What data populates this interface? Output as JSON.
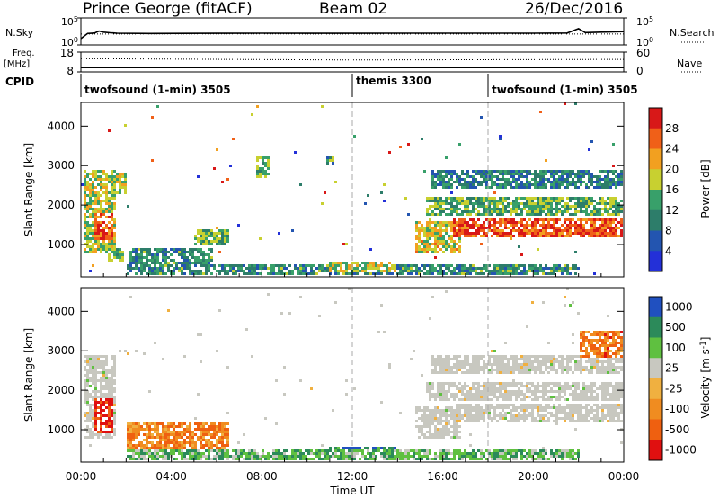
{
  "header": {
    "station": "Prince George (fitACF)",
    "beam": "Beam 02",
    "date": "26/Dec/2016"
  },
  "side_labels": {
    "nsky": "N.Sky",
    "nsearch": "N.Search",
    "freq_line1": "Freq.",
    "freq_line2": "[MHz]",
    "nave": "Nave",
    "cpid": "CPID"
  },
  "colors": {
    "velocity_gray": "#c8c8c0",
    "power_scale": [
      "#2330d8",
      "#2355b0",
      "#2d7d6a",
      "#38a06a",
      "#c8d030",
      "#f2a020",
      "#f06018",
      "#d81818"
    ],
    "velocity_scale": [
      "#2050c0",
      "#2c8a5a",
      "#5fc040",
      "#c8c8c0",
      "#f0b040",
      "#f08c20",
      "#ef6010",
      "#e01010"
    ]
  },
  "chart_data": [
    {
      "type": "line",
      "name": "noise",
      "x_range": [
        0,
        24
      ],
      "left_axis": {
        "label": "N.Sky",
        "ticks": [
          "10^5",
          "10^0"
        ]
      },
      "right_axis": {
        "label": "N.Search",
        "ticks": [
          "10^5",
          "10^0"
        ]
      },
      "series": [
        {
          "name": "N.Sky",
          "style": "solid",
          "x": [
            0,
            0.3,
            0.6,
            0.8,
            1.0,
            1.3,
            1.6,
            3,
            6,
            8,
            10,
            12,
            14,
            16,
            18,
            20,
            21.5,
            22.0,
            22.3,
            23,
            24
          ],
          "y": [
            10,
            90,
            110,
            250,
            160,
            120,
            100,
            90,
            95,
            100,
            95,
            95,
            100,
            100,
            100,
            100,
            110,
            700,
            130,
            160,
            200
          ]
        },
        {
          "name": "N.Search",
          "style": "dotted",
          "x": [
            0,
            6,
            12,
            18,
            24
          ],
          "y": [
            70,
            75,
            70,
            72,
            70
          ]
        }
      ]
    },
    {
      "type": "line",
      "name": "frequency-nave",
      "x_range": [
        0,
        24
      ],
      "left_axis": {
        "label": "Freq. [MHz]",
        "ticks": [
          "18",
          "8"
        ]
      },
      "right_axis": {
        "label": "Nave",
        "ticks": [
          "60",
          "0"
        ]
      },
      "series": [
        {
          "name": "Freq.",
          "style": "solid",
          "x": [
            0,
            24
          ],
          "y": [
            10.2,
            10.2
          ]
        },
        {
          "name": "Nave",
          "style": "dotted",
          "x": [
            0,
            12,
            24
          ],
          "y": [
            40,
            36,
            38
          ]
        }
      ]
    },
    {
      "type": "table",
      "name": "cpid",
      "label": "CPID",
      "segments": [
        {
          "start": 0,
          "end": 12,
          "text": "twofsound (1-min) 3505"
        },
        {
          "start": 12,
          "end": 18,
          "text": "themis 3300"
        },
        {
          "start": 18,
          "end": 24,
          "text": "twofsound (1-min) 3505"
        }
      ]
    },
    {
      "type": "heatmap",
      "name": "power",
      "ylabel": "Slant Range [km]",
      "y_ticks": [
        1000,
        2000,
        3000,
        4000
      ],
      "y_range": [
        180,
        4600
      ],
      "x_range": [
        0,
        24
      ],
      "colorbar": {
        "label": "Power [dB]",
        "ticks": [
          "4",
          "8",
          "12",
          "16",
          "20",
          "24",
          "28"
        ]
      },
      "regions": [
        {
          "t": [
            0.1,
            1.6
          ],
          "r": [
            800,
            2900
          ],
          "level": 0.55
        },
        {
          "t": [
            0.6,
            1.4
          ],
          "r": [
            1100,
            1800
          ],
          "level": 0.8
        },
        {
          "t": [
            1.2,
            2.0
          ],
          "r": [
            2300,
            2800
          ],
          "level": 0.55
        },
        {
          "t": [
            1.2,
            1.9
          ],
          "r": [
            600,
            900
          ],
          "level": 0.45
        },
        {
          "t": [
            2.2,
            5.8
          ],
          "r": [
            200,
            900
          ],
          "level": 0.35
        },
        {
          "t": [
            5.0,
            6.5
          ],
          "r": [
            1000,
            1400
          ],
          "level": 0.45
        },
        {
          "t": [
            7.8,
            8.3
          ],
          "r": [
            2700,
            3200
          ],
          "level": 0.45
        },
        {
          "t": [
            10.8,
            11.2
          ],
          "r": [
            3000,
            3200
          ],
          "level": 0.35
        },
        {
          "t": [
            2.0,
            22.0
          ],
          "r": [
            180,
            500
          ],
          "level": 0.35
        },
        {
          "t": [
            11.0,
            14.0
          ],
          "r": [
            300,
            600
          ],
          "level": 0.55
        },
        {
          "t": [
            14.8,
            16.8
          ],
          "r": [
            800,
            1600
          ],
          "level": 0.6
        },
        {
          "t": [
            15.2,
            24.0
          ],
          "r": [
            1700,
            2200
          ],
          "level": 0.45
        },
        {
          "t": [
            15.5,
            24.0
          ],
          "r": [
            2400,
            2900
          ],
          "level": 0.3
        },
        {
          "t": [
            16.5,
            24.0
          ],
          "r": [
            1150,
            1650
          ],
          "level": 0.85
        }
      ]
    },
    {
      "type": "heatmap",
      "name": "velocity",
      "ylabel": "Slant Range [km]",
      "y_ticks": [
        1000,
        2000,
        3000,
        4000
      ],
      "y_range": [
        180,
        4600
      ],
      "x_range": [
        0,
        24
      ],
      "x_ticks": [
        "00:00",
        "04:00",
        "08:00",
        "12:00",
        "16:00",
        "20:00",
        "00:00"
      ],
      "xlabel": "Time UT",
      "colorbar": {
        "label": "Velocity [m s^-1]",
        "ticks": [
          "1000",
          "500",
          "100",
          "25",
          "-25",
          "-100",
          "-500",
          "-1000"
        ]
      },
      "regions": [
        {
          "t": [
            0.1,
            1.6
          ],
          "r": [
            800,
            2900
          ],
          "level": 0.45
        },
        {
          "t": [
            0.6,
            1.4
          ],
          "r": [
            900,
            1800
          ],
          "level": 0.95
        },
        {
          "t": [
            2.0,
            6.5
          ],
          "r": [
            500,
            1200
          ],
          "level": 0.72
        },
        {
          "t": [
            2.0,
            22.0
          ],
          "r": [
            180,
            500
          ],
          "level": 0.3
        },
        {
          "t": [
            11.0,
            14.0
          ],
          "r": [
            300,
            600
          ],
          "level": 0.15
        },
        {
          "t": [
            14.8,
            16.8
          ],
          "r": [
            800,
            1600
          ],
          "level": 0.45
        },
        {
          "t": [
            15.2,
            24.0
          ],
          "r": [
            1700,
            2200
          ],
          "level": 0.45
        },
        {
          "t": [
            15.5,
            24.0
          ],
          "r": [
            2400,
            2900
          ],
          "level": 0.45
        },
        {
          "t": [
            16.5,
            24.0
          ],
          "r": [
            1150,
            1650
          ],
          "level": 0.45
        },
        {
          "t": [
            22.0,
            24.0
          ],
          "r": [
            2800,
            3500
          ],
          "level": 0.75
        }
      ]
    }
  ],
  "vertical_markers": [
    12,
    18
  ]
}
